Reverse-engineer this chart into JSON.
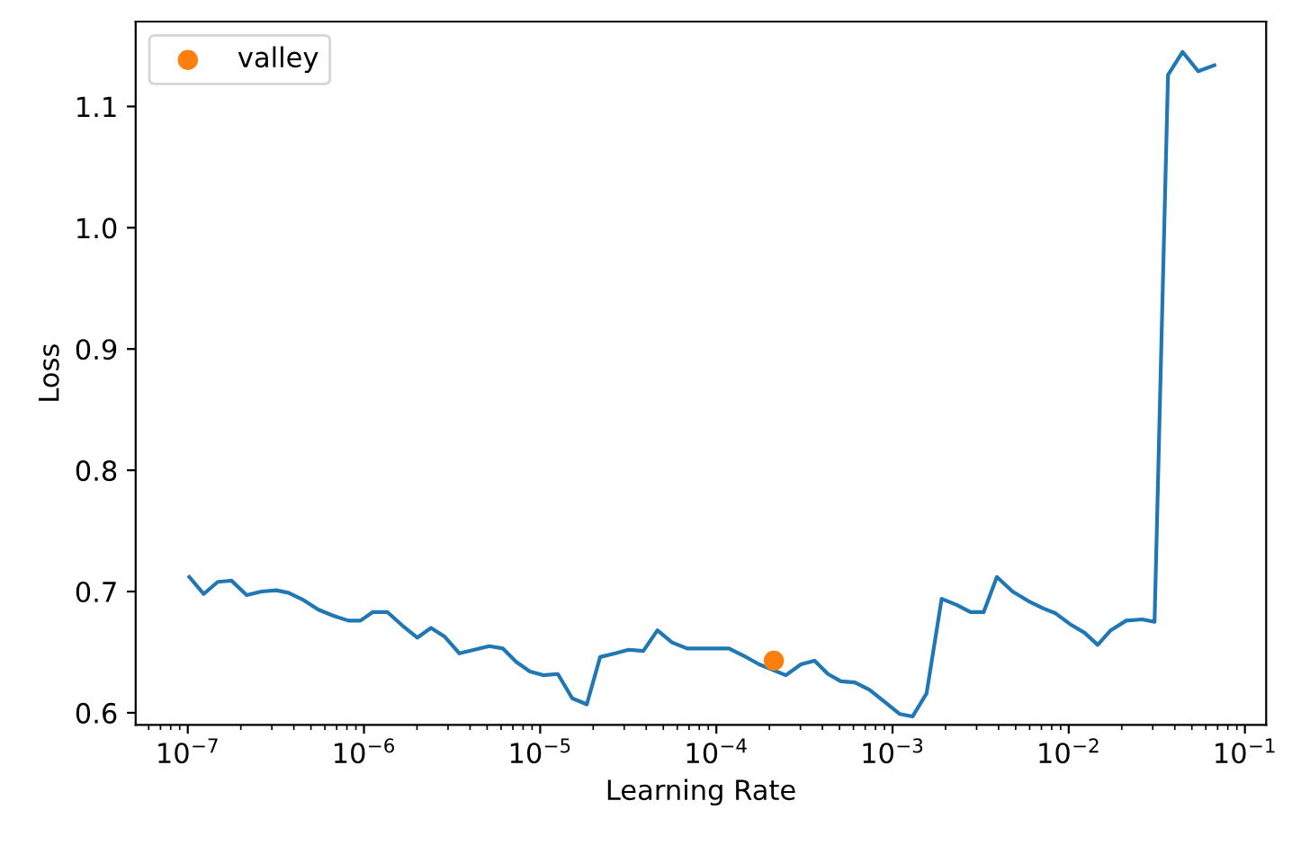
{
  "chart_data": {
    "type": "line",
    "xlabel": "Learning Rate",
    "ylabel": "Loss",
    "log": "x",
    "xlim": [
      5.06e-08,
      0.132
    ],
    "ylim": [
      0.59,
      1.17
    ],
    "xticks": [
      {
        "value": 1e-07,
        "label": "10$^{−7}$"
      },
      {
        "value": 1e-06,
        "label": "10$^{−6}$"
      },
      {
        "value": 1e-05,
        "label": "10$^{−5}$"
      },
      {
        "value": 0.0001,
        "label": "10$^{−4}$"
      },
      {
        "value": 0.001,
        "label": "10$^{−3}$"
      },
      {
        "value": 0.01,
        "label": "10$^{−2}$"
      },
      {
        "value": 0.1,
        "label": "10$^{−1}$"
      }
    ],
    "yticks": [
      0.6,
      0.7,
      0.8,
      0.9,
      {
        "value": 1.0,
        "label": "1.0"
      },
      1.1
    ],
    "legend": "top left",
    "grid": false,
    "series": [
      {
        "color": "#1f77b4",
        "x": [
          1.02e-07,
          1.23e-07,
          1.48e-07,
          1.77e-07,
          2.16e-07,
          2.62e-07,
          3.18e-07,
          3.72e-07,
          4.53e-07,
          5.52e-07,
          6.71e-07,
          8.15e-07,
          9.55e-07,
          1.12e-06,
          1.36e-06,
          1.65e-06,
          2.01e-06,
          2.4e-06,
          2.86e-06,
          3.48e-06,
          4.23e-06,
          5.14e-06,
          6.15e-06,
          7.31e-06,
          8.75e-06,
          1.04e-05,
          1.26e-05,
          1.52e-05,
          1.84e-05,
          2.19e-05,
          2.67e-05,
          3.18e-05,
          3.85e-05,
          4.63e-05,
          5.6e-05,
          6.82e-05,
          8.28e-05,
          0.000101,
          0.000118,
          0.000143,
          0.000175,
          0.000248,
          0.000302,
          0.000361,
          0.00043,
          0.000509,
          0.000611,
          0.000741,
          0.000904,
          0.0011,
          0.0013,
          0.00156,
          0.0019,
          0.00231,
          0.00277,
          0.00329,
          0.00391,
          0.0048,
          0.00592,
          0.00719,
          0.00843,
          0.0102,
          0.0123,
          0.0146,
          0.0173,
          0.0212,
          0.0262,
          0.0307,
          0.0366,
          0.0443,
          0.0543,
          0.0671
        ],
        "values": [
          0.712,
          0.698,
          0.708,
          0.709,
          0.697,
          0.7,
          0.701,
          0.699,
          0.693,
          0.685,
          0.68,
          0.676,
          0.676,
          0.683,
          0.683,
          0.672,
          0.662,
          0.67,
          0.663,
          0.649,
          0.652,
          0.655,
          0.653,
          0.642,
          0.634,
          0.631,
          0.632,
          0.612,
          0.607,
          0.646,
          0.649,
          0.652,
          0.651,
          0.668,
          0.658,
          0.653,
          0.653,
          0.653,
          0.653,
          0.647,
          0.64,
          0.631,
          0.64,
          0.643,
          0.632,
          0.626,
          0.625,
          0.619,
          0.609,
          0.599,
          0.597,
          0.616,
          0.694,
          0.689,
          0.683,
          0.683,
          0.712,
          0.7,
          0.692,
          0.686,
          0.682,
          0.673,
          0.666,
          0.656,
          0.668,
          0.676,
          0.677,
          0.675,
          1.126,
          1.145,
          1.129,
          1.134
        ]
      },
      {
        "type": "scatter",
        "name": "valley",
        "color": "#ff7f0e",
        "marker": "circle",
        "x": [
          0.000212
        ],
        "values": [
          0.643
        ]
      }
    ]
  }
}
